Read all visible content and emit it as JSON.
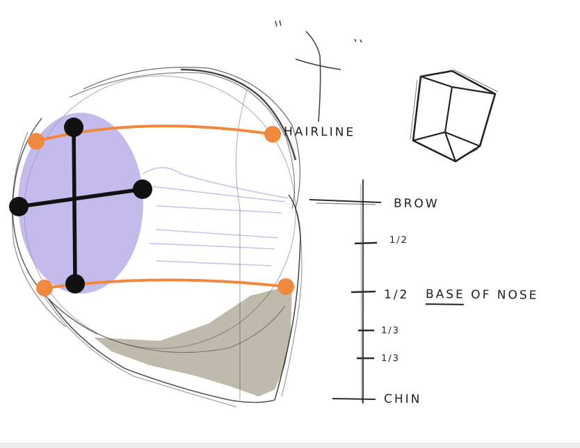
{
  "labels": {
    "hairline": "HAIRLINE",
    "brow": "BROW",
    "half_1": "1/2",
    "half_2": "1/2",
    "base_of": "BASE",
    "of_nose": "OF NOSE",
    "third_1": "1/3",
    "third_2": "1/3",
    "chin": "CHIN"
  },
  "colors": {
    "cranium_stroke": "#2a2a2a",
    "side_plane": "#9f8fe0",
    "guideline": "#f0883e",
    "axis": "#111111",
    "jaw_shadow": "#b4ae9e",
    "pencil": "#3a3a3a"
  }
}
